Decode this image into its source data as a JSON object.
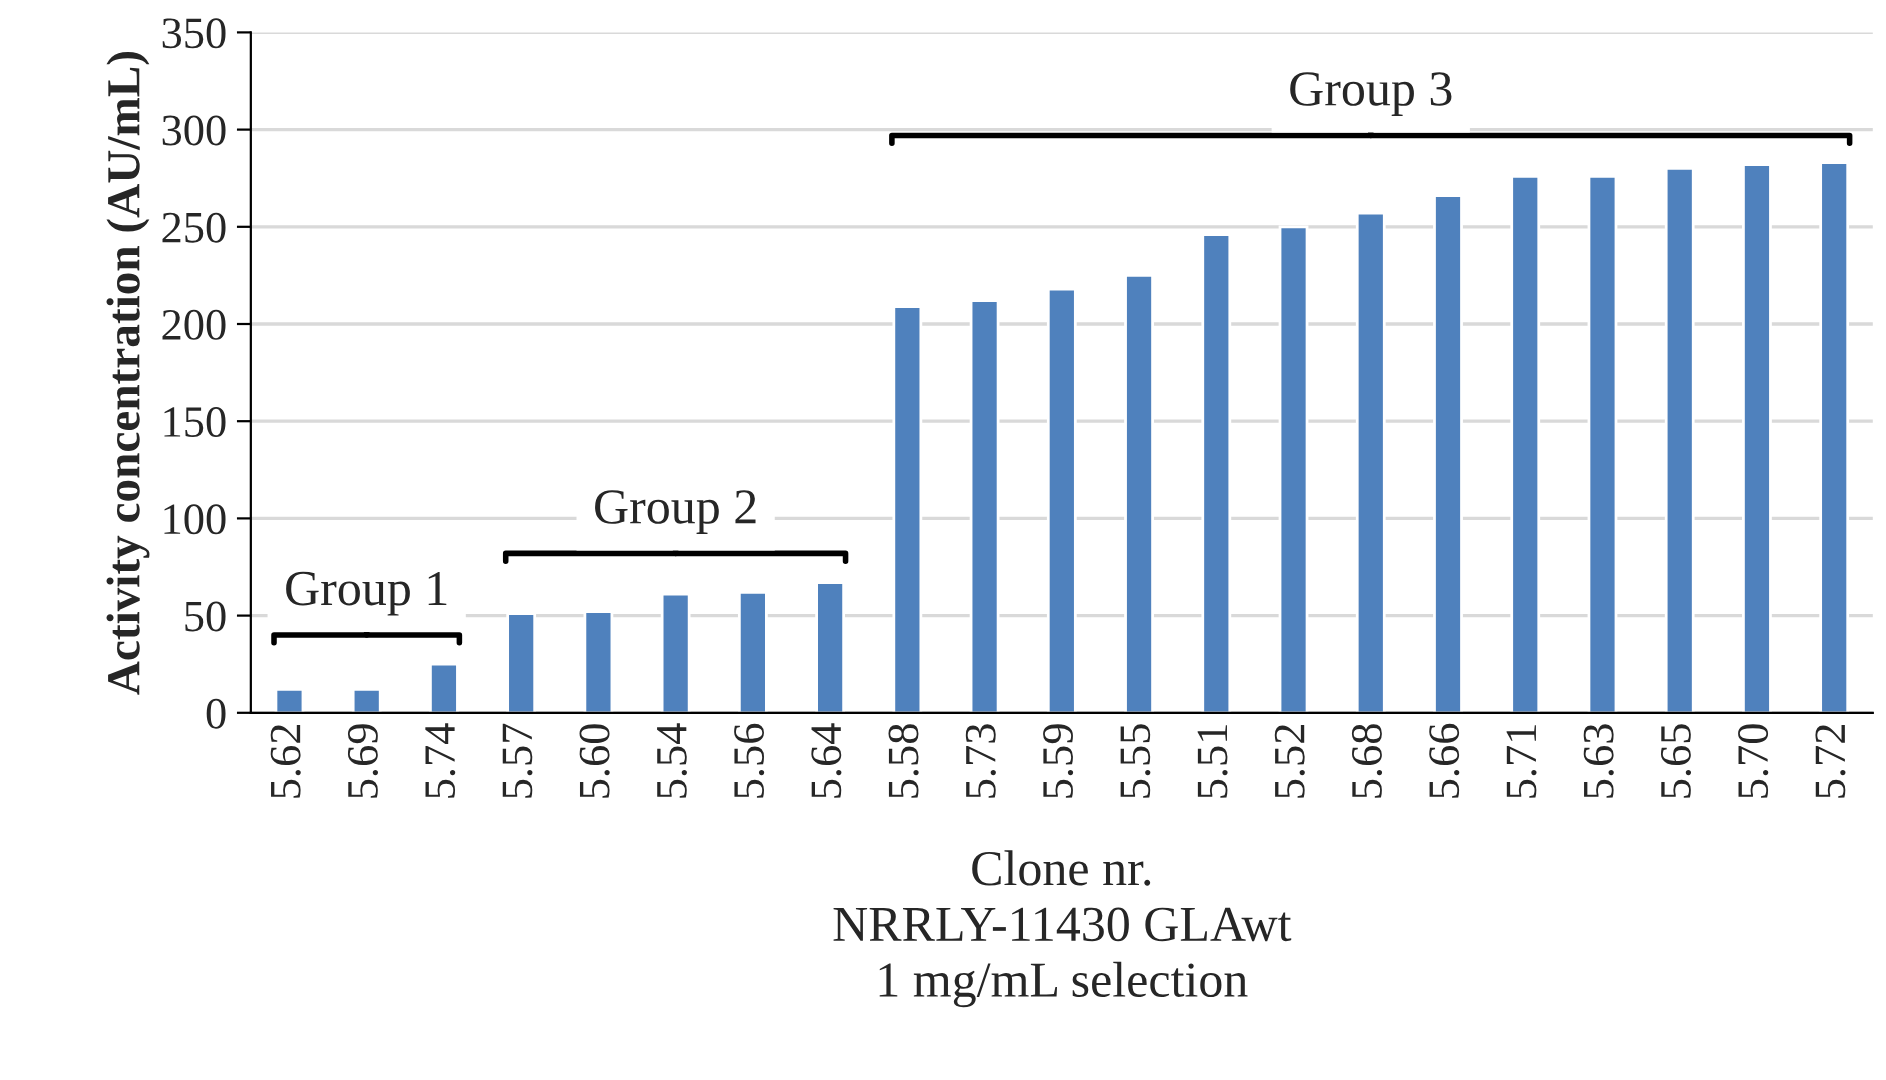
{
  "chart_data": {
    "type": "bar",
    "xlabel": "Clone nr.\nNRRLY-11430 GLAwt\n1 mg/mL selection",
    "ylabel": "Activity concentration (AU/mL)",
    "categories": [
      "5.62",
      "5.69",
      "5.74",
      "5.57",
      "5.60",
      "5.54",
      "5.56",
      "5.64",
      "5.58",
      "5.73",
      "5.59",
      "5.55",
      "5.51",
      "5.52",
      "5.68",
      "5.66",
      "5.71",
      "5.63",
      "5.65",
      "5.70",
      "5.72"
    ],
    "values": [
      12,
      12,
      25,
      51,
      52,
      61,
      62,
      67,
      209,
      212,
      218,
      225,
      246,
      250,
      257,
      266,
      276,
      276,
      280,
      282,
      283
    ],
    "color": "#4f81bd",
    "ylim": [
      0,
      350
    ],
    "yticks": [
      0,
      50,
      100,
      150,
      200,
      250,
      300,
      350
    ],
    "grid": "y",
    "legend": false,
    "annotations": [
      "Group 1",
      "Group 2",
      "Group 3"
    ]
  }
}
